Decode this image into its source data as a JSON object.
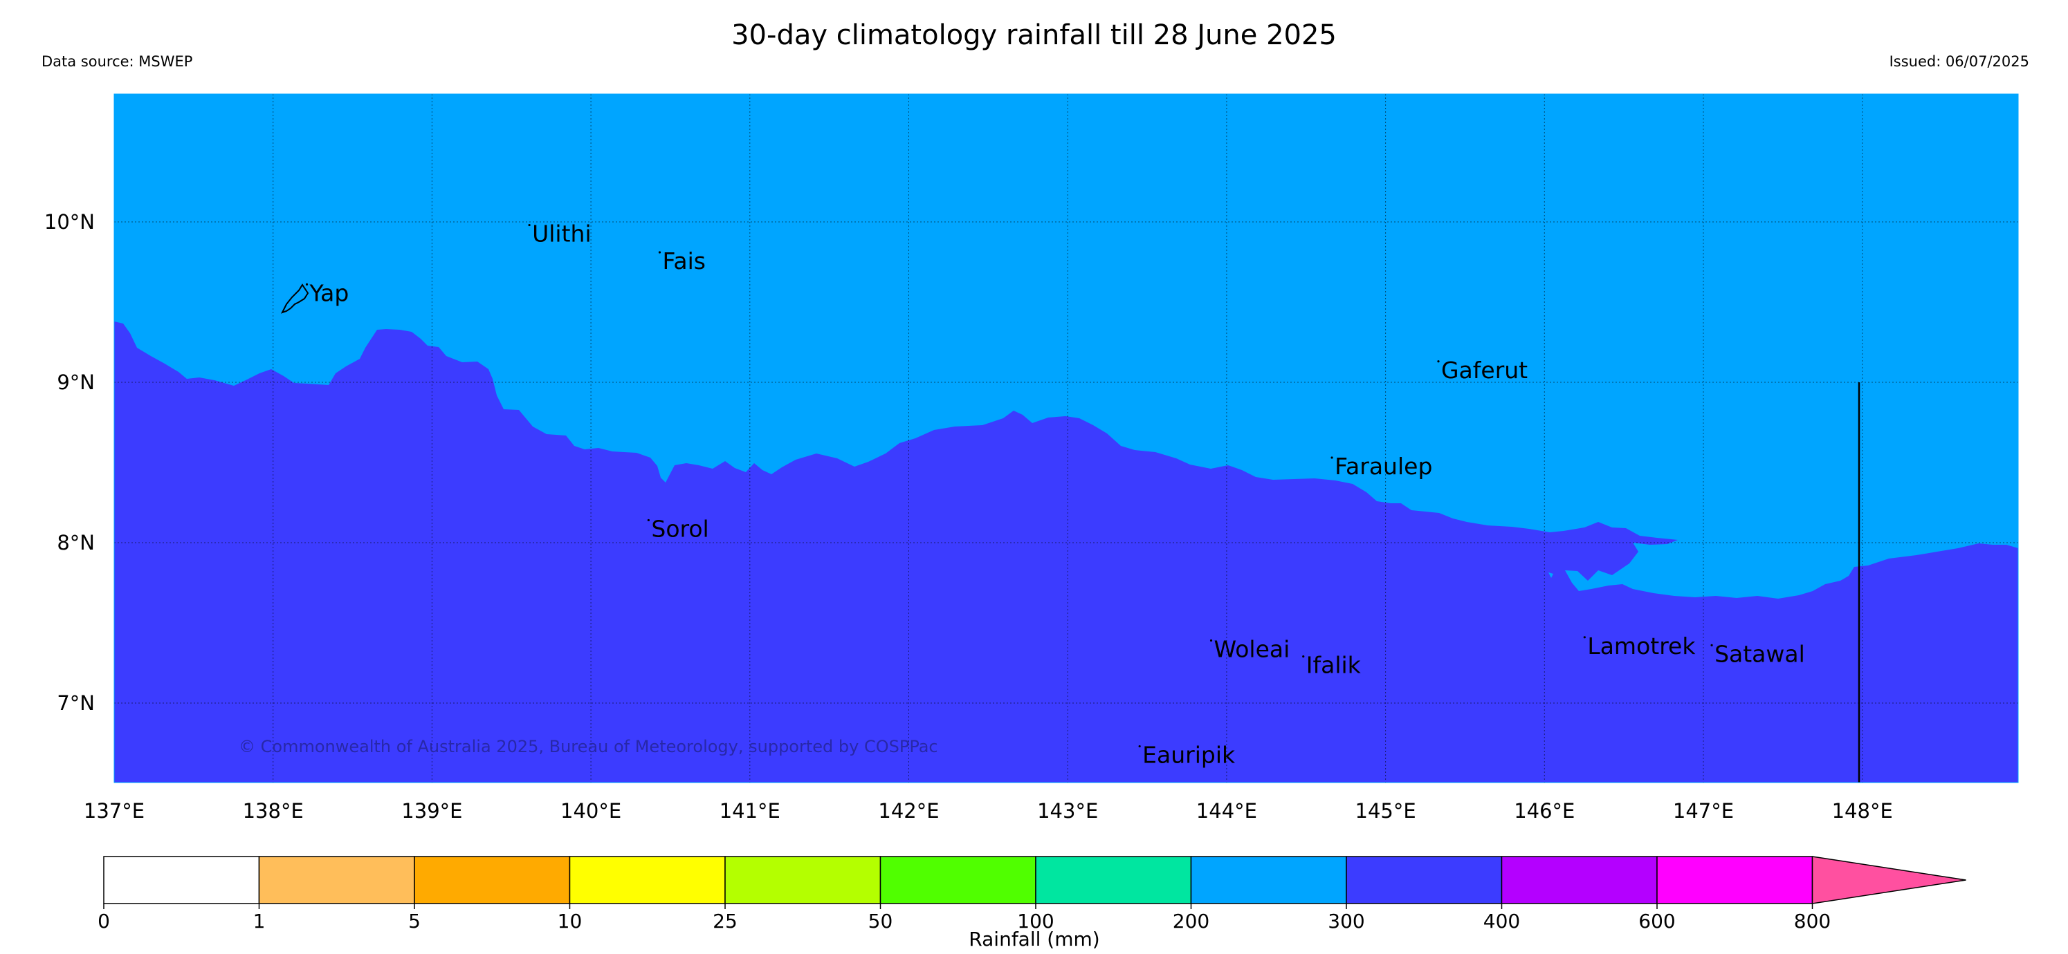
{
  "header": {
    "title": "30-day climatology rainfall till 28 June 2025",
    "data_source": "Data source: MSWEP",
    "issued": "Issued: 06/07/2025"
  },
  "map": {
    "colors": {
      "upper_region": "#00A5FF",
      "lower_region": "#3C3CFF"
    },
    "lat_ticks": [
      "10°N",
      "9°N",
      "8°N",
      "7°N"
    ],
    "lon_ticks": [
      "137°E",
      "138°E",
      "139°E",
      "140°E",
      "141°E",
      "142°E",
      "143°E",
      "144°E",
      "145°E",
      "146°E",
      "147°E",
      "148°E"
    ],
    "places": [
      {
        "name": "Yap",
        "lon": 138.23,
        "lat": 9.55
      },
      {
        "name": "Ulithi",
        "lon": 139.63,
        "lat": 9.92
      },
      {
        "name": "Fais",
        "lon": 140.45,
        "lat": 9.75
      },
      {
        "name": "Gaferut",
        "lon": 145.35,
        "lat": 9.07
      },
      {
        "name": "Faraulep",
        "lon": 144.68,
        "lat": 8.47
      },
      {
        "name": "Sorol",
        "lon": 140.38,
        "lat": 8.08
      },
      {
        "name": "Woleai",
        "lon": 143.92,
        "lat": 7.33
      },
      {
        "name": "Ifalik",
        "lon": 144.5,
        "lat": 7.23
      },
      {
        "name": "Lamotrek",
        "lon": 146.27,
        "lat": 7.35
      },
      {
        "name": "Satawal",
        "lon": 147.07,
        "lat": 7.3
      },
      {
        "name": "Eauripik",
        "lon": 143.47,
        "lat": 6.67
      }
    ],
    "copyright": "© Commonwealth of Australia 2025, Bureau of Meteorology, supported by COSPPac"
  },
  "colorbar": {
    "label": "Rainfall (mm)",
    "bins": [
      {
        "color": "#FFFFFF",
        "from": "0"
      },
      {
        "color": "#FFBE5A",
        "from": "1"
      },
      {
        "color": "#FFAA00",
        "from": "5"
      },
      {
        "color": "#FFFF00",
        "from": "10"
      },
      {
        "color": "#B4FF00",
        "from": "25"
      },
      {
        "color": "#50FF00",
        "from": "50"
      },
      {
        "color": "#00E6A0",
        "from": "100"
      },
      {
        "color": "#00A5FF",
        "from": "200"
      },
      {
        "color": "#3C3CFF",
        "from": "300"
      },
      {
        "color": "#B400FF",
        "from": "400"
      },
      {
        "color": "#FF00FF",
        "from": "600"
      }
    ],
    "extend_color": "#FF50A0",
    "extend_from": "800"
  }
}
